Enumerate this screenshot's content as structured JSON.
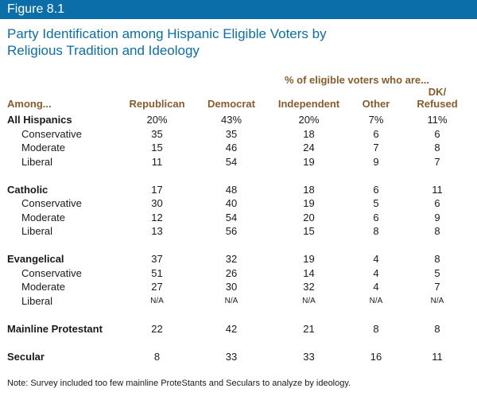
{
  "figure_label": "Figure 8.1",
  "title_line1": "Party Identification among Hispanic Eligible Voters by",
  "title_line2": "Religious Tradition and Ideology",
  "subheading": "% of eligible voters who are...",
  "columns": [
    "Among...",
    "Republican",
    "Democrat",
    "Independent",
    "Other",
    "DK/\nRefused"
  ],
  "rows": [
    {
      "label": "All Hispanics",
      "kind": "group",
      "values": [
        "20%",
        "43%",
        "20%",
        "7%",
        "11%"
      ]
    },
    {
      "label": "Conservative",
      "kind": "sub",
      "values": [
        "35",
        "35",
        "18",
        "6",
        "6"
      ]
    },
    {
      "label": "Moderate",
      "kind": "sub",
      "values": [
        "15",
        "46",
        "24",
        "7",
        "8"
      ]
    },
    {
      "label": "Liberal",
      "kind": "sub",
      "values": [
        "11",
        "54",
        "19",
        "9",
        "7"
      ]
    },
    {
      "kind": "spacer"
    },
    {
      "label": "Catholic",
      "kind": "group",
      "values": [
        "17",
        "48",
        "18",
        "6",
        "11"
      ]
    },
    {
      "label": "Conservative",
      "kind": "sub",
      "values": [
        "30",
        "40",
        "19",
        "5",
        "6"
      ]
    },
    {
      "label": "Moderate",
      "kind": "sub",
      "values": [
        "12",
        "54",
        "20",
        "6",
        "9"
      ]
    },
    {
      "label": "Liberal",
      "kind": "sub",
      "values": [
        "13",
        "56",
        "15",
        "8",
        "8"
      ]
    },
    {
      "kind": "spacer"
    },
    {
      "label": "Evangelical",
      "kind": "group",
      "values": [
        "37",
        "32",
        "19",
        "4",
        "8"
      ]
    },
    {
      "label": "Conservative",
      "kind": "sub",
      "values": [
        "51",
        "26",
        "14",
        "4",
        "5"
      ]
    },
    {
      "label": "Moderate",
      "kind": "sub",
      "values": [
        "27",
        "30",
        "32",
        "4",
        "7"
      ]
    },
    {
      "label": "Liberal",
      "kind": "sub",
      "values": [
        "N/A",
        "N/A",
        "N/A",
        "N/A",
        "N/A"
      ]
    },
    {
      "kind": "spacer"
    },
    {
      "label": "Mainline Protestant",
      "kind": "group",
      "values": [
        "22",
        "42",
        "21",
        "8",
        "8"
      ]
    },
    {
      "kind": "spacer"
    },
    {
      "label": "Secular",
      "kind": "group",
      "values": [
        "8",
        "33",
        "33",
        "16",
        "11"
      ]
    }
  ],
  "note": "Note: Survey included too few mainline ProteStants and Seculars to analyze by ideology.",
  "colors": {
    "blue": "#0b6ea8",
    "brown": "#8a5a2b"
  }
}
